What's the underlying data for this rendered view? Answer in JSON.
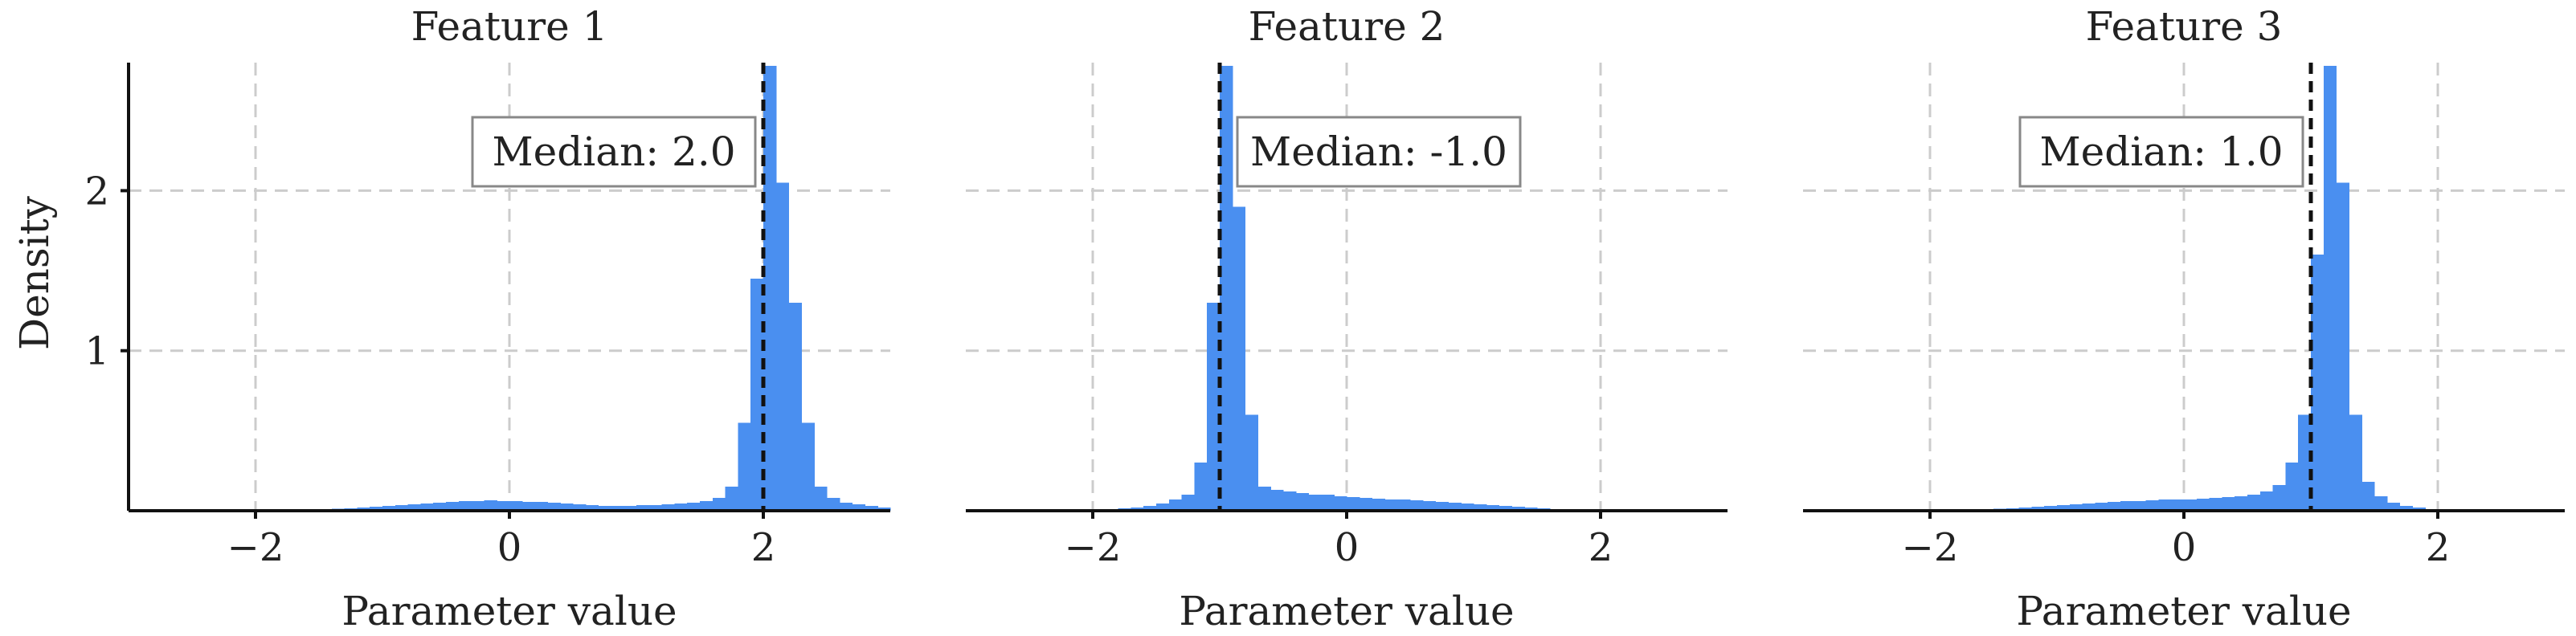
{
  "colors": {
    "bar": "#4a8ff0",
    "grid": "#cccccc",
    "median_line": "#111111"
  },
  "chart_data": [
    {
      "type": "bar",
      "title": "Feature 1",
      "xlabel": "Parameter value",
      "ylabel": "Density",
      "xlim": [
        -3.0,
        3.0
      ],
      "ylim": [
        0,
        2.8
      ],
      "xticks": [
        -2,
        0,
        2
      ],
      "xtick_labels": [
        "−2",
        "0",
        "2"
      ],
      "yticks": [
        1,
        2
      ],
      "ytick_labels": [
        "1",
        "2"
      ],
      "grid": true,
      "median": 2.0,
      "annotation": "Median: 2.0",
      "bin_width": 0.1,
      "bin_start": -3.0,
      "values": [
        0,
        0,
        0,
        0,
        0,
        0,
        0,
        0,
        0,
        0,
        0,
        0,
        0,
        0.005,
        0.008,
        0.01,
        0.012,
        0.015,
        0.02,
        0.025,
        0.03,
        0.035,
        0.04,
        0.045,
        0.05,
        0.055,
        0.06,
        0.06,
        0.065,
        0.06,
        0.06,
        0.055,
        0.055,
        0.05,
        0.045,
        0.04,
        0.035,
        0.03,
        0.03,
        0.03,
        0.035,
        0.035,
        0.04,
        0.045,
        0.05,
        0.06,
        0.08,
        0.15,
        0.55,
        1.45,
        2.78,
        2.05,
        1.3,
        0.55,
        0.15,
        0.08,
        0.05,
        0.04,
        0.03,
        0.02
      ]
    },
    {
      "type": "bar",
      "title": "Feature 2",
      "xlabel": "Parameter value",
      "xlim": [
        -3.0,
        3.0
      ],
      "ylim": [
        0,
        2.8
      ],
      "xticks": [
        -2,
        0,
        2
      ],
      "xtick_labels": [
        "−2",
        "0",
        "2"
      ],
      "grid": true,
      "median": -1.0,
      "annotation": "Median: -1.0",
      "bin_width": 0.1,
      "bin_start": -3.0,
      "values": [
        0,
        0,
        0,
        0,
        0,
        0,
        0,
        0,
        0,
        0,
        0.005,
        0.01,
        0.015,
        0.02,
        0.03,
        0.045,
        0.07,
        0.1,
        0.3,
        1.3,
        2.78,
        1.9,
        0.6,
        0.15,
        0.13,
        0.12,
        0.11,
        0.1,
        0.1,
        0.09,
        0.085,
        0.08,
        0.075,
        0.07,
        0.07,
        0.065,
        0.06,
        0.055,
        0.05,
        0.045,
        0.04,
        0.035,
        0.03,
        0.025,
        0.02,
        0.015,
        0.01,
        0.005,
        0.003,
        0,
        0,
        0,
        0,
        0,
        0,
        0,
        0,
        0,
        0,
        0
      ]
    },
    {
      "type": "bar",
      "title": "Feature 3",
      "xlabel": "Parameter value",
      "xlim": [
        -3.0,
        3.0
      ],
      "ylim": [
        0,
        2.8
      ],
      "xticks": [
        -2,
        0,
        2
      ],
      "xtick_labels": [
        "−2",
        "0",
        "2"
      ],
      "grid": true,
      "median": 1.0,
      "annotation": "Median: 1.0",
      "bin_width": 0.1,
      "bin_start": -3.0,
      "values": [
        0,
        0,
        0,
        0,
        0,
        0,
        0,
        0,
        0,
        0,
        0,
        0,
        0,
        0.005,
        0.01,
        0.012,
        0.015,
        0.02,
        0.025,
        0.03,
        0.035,
        0.04,
        0.045,
        0.05,
        0.055,
        0.06,
        0.06,
        0.065,
        0.07,
        0.07,
        0.07,
        0.075,
        0.08,
        0.085,
        0.09,
        0.1,
        0.12,
        0.16,
        0.3,
        0.6,
        1.6,
        2.78,
        2.05,
        0.6,
        0.18,
        0.09,
        0.05,
        0.03,
        0.02,
        0.01,
        0,
        0,
        0,
        0,
        0,
        0,
        0,
        0,
        0,
        0
      ]
    }
  ]
}
